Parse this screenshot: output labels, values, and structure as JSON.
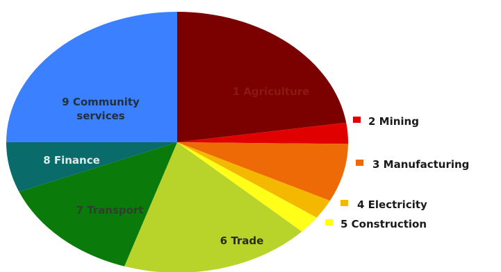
{
  "chart_data": {
    "type": "pie",
    "title": "",
    "slices": [
      {
        "label": "1 Agriculture",
        "value": 22.6,
        "color": "#7b0000",
        "label_color": "#8a1a10"
      },
      {
        "label": "2 Mining",
        "value": 2.6,
        "color": "#e00000",
        "label_color": "#ffffff"
      },
      {
        "label": "3 Manufacturing",
        "value": 7.2,
        "color": "#ee6a06",
        "label_color": "#ffffff"
      },
      {
        "label": "4 Electricity",
        "value": 2.4,
        "color": "#f5b800",
        "label_color": "#ffffff"
      },
      {
        "label": "5 Construction",
        "value": 2.2,
        "color": "#ffff1a",
        "label_color": "#ffffff"
      },
      {
        "label": "6 Trade",
        "value": 18.0,
        "color": "#b8d42a",
        "label_color": "#2a2a2a"
      },
      {
        "label": "7 Transport",
        "value": 13.8,
        "color": "#0a7a0a",
        "label_color": "#2f3f2f"
      },
      {
        "label": "8 Finance",
        "value": 6.2,
        "color": "#0a6b6b",
        "label_color": "#dfeaea"
      },
      {
        "label": "9 Community services",
        "value": 25.0,
        "color": "#3b80ff",
        "label_color": "#203040"
      }
    ],
    "legend_items": [
      {
        "label": "2 Mining",
        "color": "#e00000"
      },
      {
        "label": "3 Manufacturing",
        "color": "#ee6a06"
      },
      {
        "label": "4 Electricity",
        "color": "#f5b800"
      },
      {
        "label": "5 Construction",
        "color": "#ffff1a"
      }
    ]
  }
}
